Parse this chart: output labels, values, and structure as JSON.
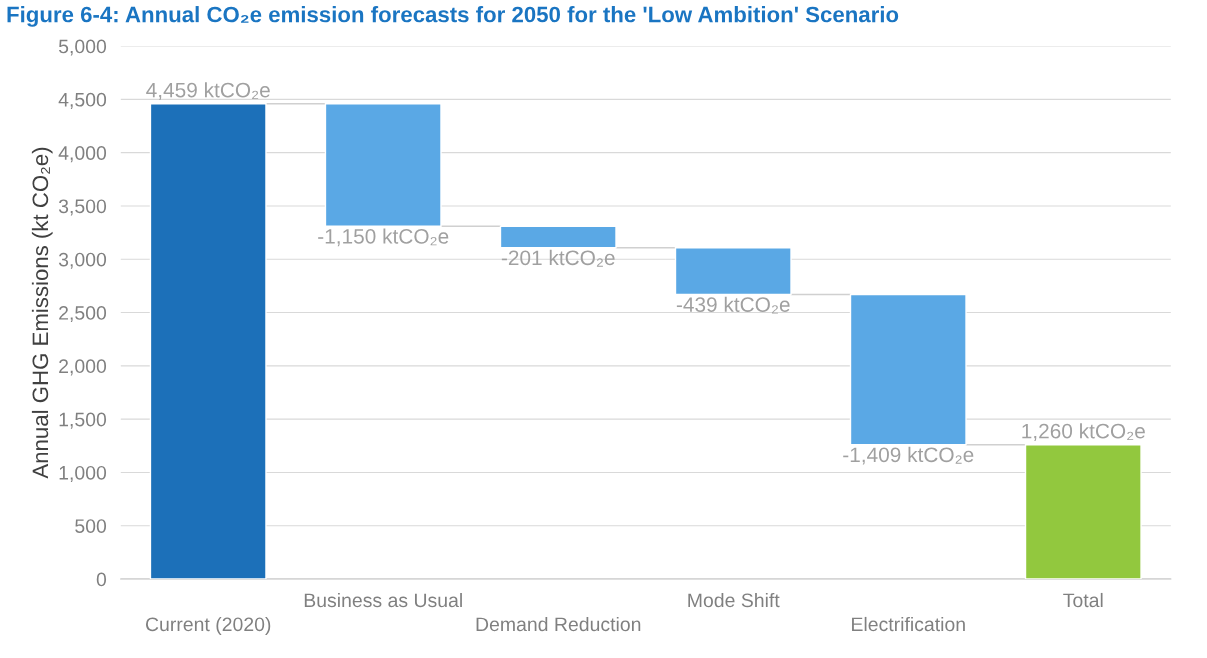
{
  "chart_data": {
    "type": "bar",
    "title": "Figure 6-4: Annual CO₂e emission forecasts for 2050 for the 'Low Ambition' Scenario",
    "ylabel": "Annual GHG Emissions (kt CO₂e)",
    "categories": [
      "Current (2020)",
      "Business as Usual",
      "Demand Reduction",
      "Mode Shift",
      "Electrification",
      "Total"
    ],
    "values": [
      4459,
      -1150,
      -201,
      -439,
      -1409,
      1260
    ],
    "base": [
      0,
      4459,
      3309,
      3108,
      2669,
      0
    ],
    "colors": [
      "#1c70b9",
      "#5aa8e5",
      "#5aa8e5",
      "#5aa8e5",
      "#5aa8e5",
      "#92c83e"
    ],
    "value_labels": [
      "4,459 ktCO₂e",
      "-1,150 ktCO₂e",
      "-201 ktCO₂e",
      "-439 ktCO₂e",
      "-1,409 ktCO₂e",
      "1,260 ktCO₂e"
    ],
    "ylim": [
      0,
      5000
    ],
    "yticks": [
      {
        "value": 0,
        "label": "0"
      },
      {
        "value": 500,
        "label": "500"
      },
      {
        "value": 1000,
        "label": "1,000"
      },
      {
        "value": 1500,
        "label": "1,500"
      },
      {
        "value": 2000,
        "label": "2,000"
      },
      {
        "value": 2500,
        "label": "2,500"
      },
      {
        "value": 3000,
        "label": "3,000"
      },
      {
        "value": 3500,
        "label": "3,500"
      },
      {
        "value": 4000,
        "label": "4,000"
      },
      {
        "value": 4500,
        "label": "4,500"
      },
      {
        "value": 5000,
        "label": "5,000"
      }
    ],
    "grid": "y"
  }
}
